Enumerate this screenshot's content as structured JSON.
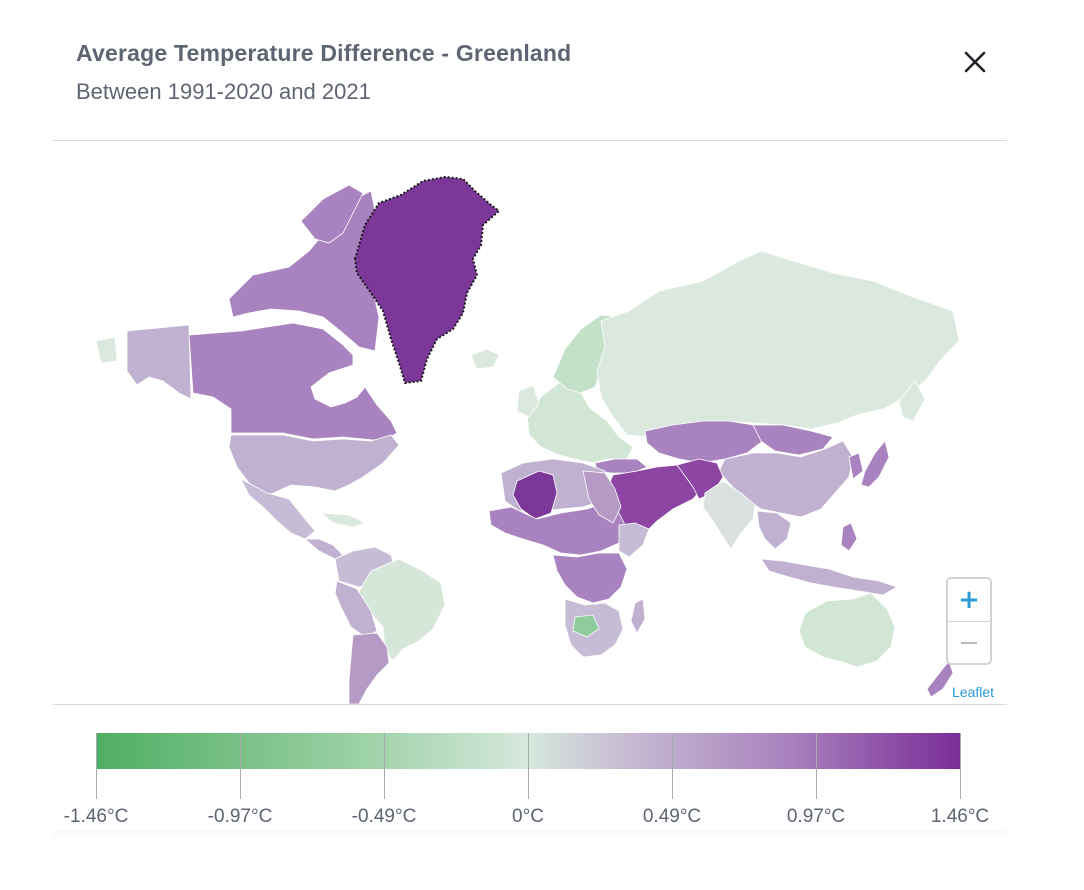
{
  "header": {
    "title": "Average Temperature Difference - Greenland",
    "subtitle": "Between 1991-2020 and 2021",
    "close_icon": "close-icon"
  },
  "map": {
    "selected_region": "Greenland",
    "colors": {
      "selected": "#7b3898",
      "strong_warm": "#8c45a3",
      "warm": "#a983bf",
      "mild_warm": "#bfb1cf",
      "neutral": "#dbe8de",
      "cool": "#a9d4b0"
    },
    "zoom": {
      "in_label": "+",
      "out_label": "−"
    },
    "attribution": "Leaflet"
  },
  "legend": {
    "min_color": "#4fae63",
    "mid_color": "#d6e8dd",
    "max_color": "#7a2d98",
    "ticks": [
      "-1.46°C",
      "-0.97°C",
      "-0.49°C",
      "0°C",
      "0.49°C",
      "0.97°C",
      "1.46°C"
    ]
  }
}
